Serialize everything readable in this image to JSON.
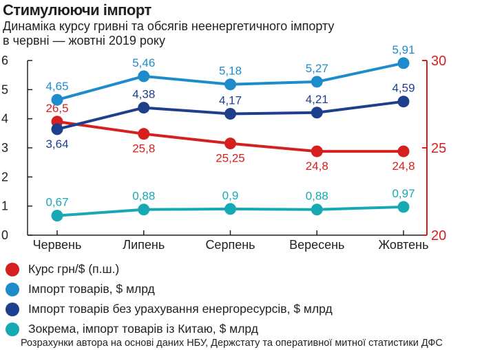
{
  "header": {
    "title": "Стимулюючи імпорт",
    "subtitle_line1": "Динаміка курсу гривні та обсягів неенергетичного імпорту",
    "subtitle_line2": "в червні — жовтні 2019 року"
  },
  "source_note": "Розрахунки автора на основі даних НБУ, Держстату та оперативної митної статистики ДФС",
  "chart_data": {
    "type": "line",
    "title": "Стимулюючи імпорт",
    "categories": [
      "Червень",
      "Липень",
      "Серпень",
      "Вересень",
      "Жовтень"
    ],
    "left_axis": {
      "ylim": [
        0,
        6
      ],
      "ticks": [
        "0",
        "1",
        "2",
        "3",
        "4",
        "5",
        "6"
      ]
    },
    "right_axis": {
      "ylim": [
        20,
        30
      ],
      "ticks": [
        "20",
        "25",
        "30"
      ]
    },
    "grid": false,
    "series": [
      {
        "name": "Курс грн/$ (п.ш.)",
        "axis": "right",
        "color": "#d5201f",
        "values": [
          26.5,
          25.8,
          25.25,
          24.8,
          24.8
        ],
        "labels": [
          "26,5",
          "25,8",
          "25,25",
          "24,8",
          "24,8"
        ]
      },
      {
        "name": "Імпорт товарів, $ млрд",
        "axis": "left",
        "color": "#1e8ccb",
        "values": [
          4.65,
          5.46,
          5.18,
          5.27,
          5.91
        ],
        "labels": [
          "4,65",
          "5,46",
          "5,18",
          "5,27",
          "5,91"
        ]
      },
      {
        "name": "Імпорт товарів без урахування енергоресурсів, $ млрд",
        "axis": "left",
        "color": "#1d3f8c",
        "values": [
          3.64,
          4.38,
          4.17,
          4.21,
          4.59
        ],
        "labels": [
          "3,64",
          "4,38",
          "4,17",
          "4,21",
          "4,59"
        ]
      },
      {
        "name": "Зокрема, імпорт товарів із Китаю, $ млрд",
        "axis": "left",
        "color": "#16a9b4",
        "values": [
          0.67,
          0.88,
          0.9,
          0.88,
          0.97
        ],
        "labels": [
          "0,67",
          "0,88",
          "0,9",
          "0,88",
          "0,97"
        ]
      }
    ]
  }
}
